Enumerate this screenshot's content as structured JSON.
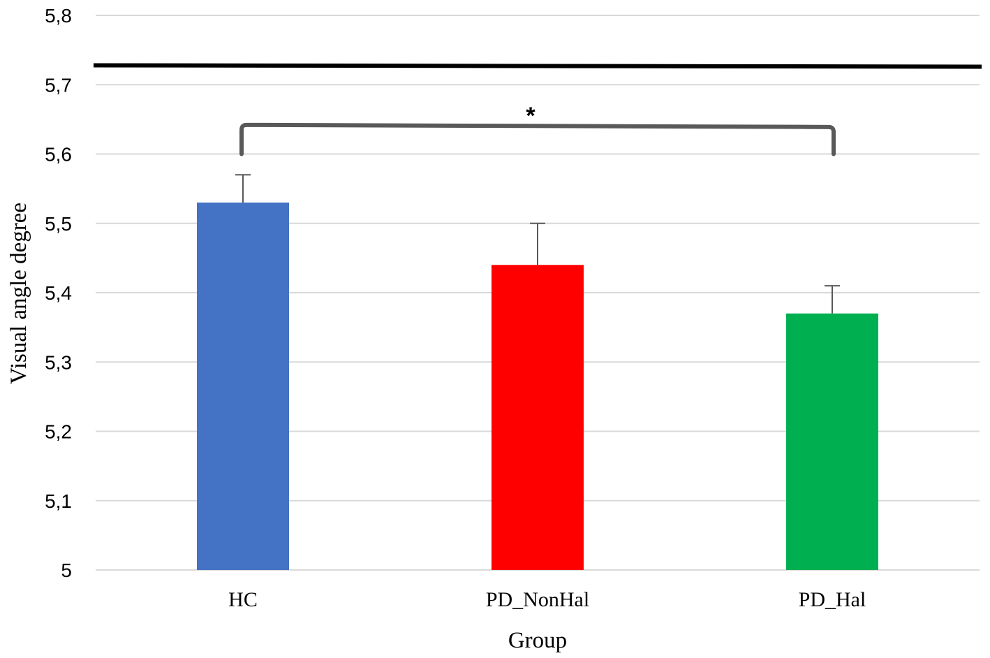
{
  "chart_data": {
    "type": "bar",
    "categories": [
      "HC",
      "PD_NonHal",
      "PD_Hal"
    ],
    "values": [
      5.53,
      5.44,
      5.37
    ],
    "error_plus": [
      0.04,
      0.06,
      0.04
    ],
    "colors": [
      "#4472C4",
      "#FF0000",
      "#00B050"
    ],
    "xlabel": "Group",
    "ylabel": "Visual angle degree",
    "ylim": [
      5,
      5.8
    ],
    "yticks": [
      5,
      5.1,
      5.2,
      5.3,
      5.4,
      5.5,
      5.6,
      5.7,
      5.8
    ],
    "ytick_labels": [
      "5",
      "5,1",
      "5,2",
      "5,3",
      "5,4",
      "5,5",
      "5,6",
      "5,7",
      "5,8"
    ],
    "grid": true,
    "reference_line": {
      "value": 5.727
    },
    "significance": {
      "from": "HC",
      "to": "PD_Hal",
      "label": "*",
      "level": 5.642
    }
  }
}
